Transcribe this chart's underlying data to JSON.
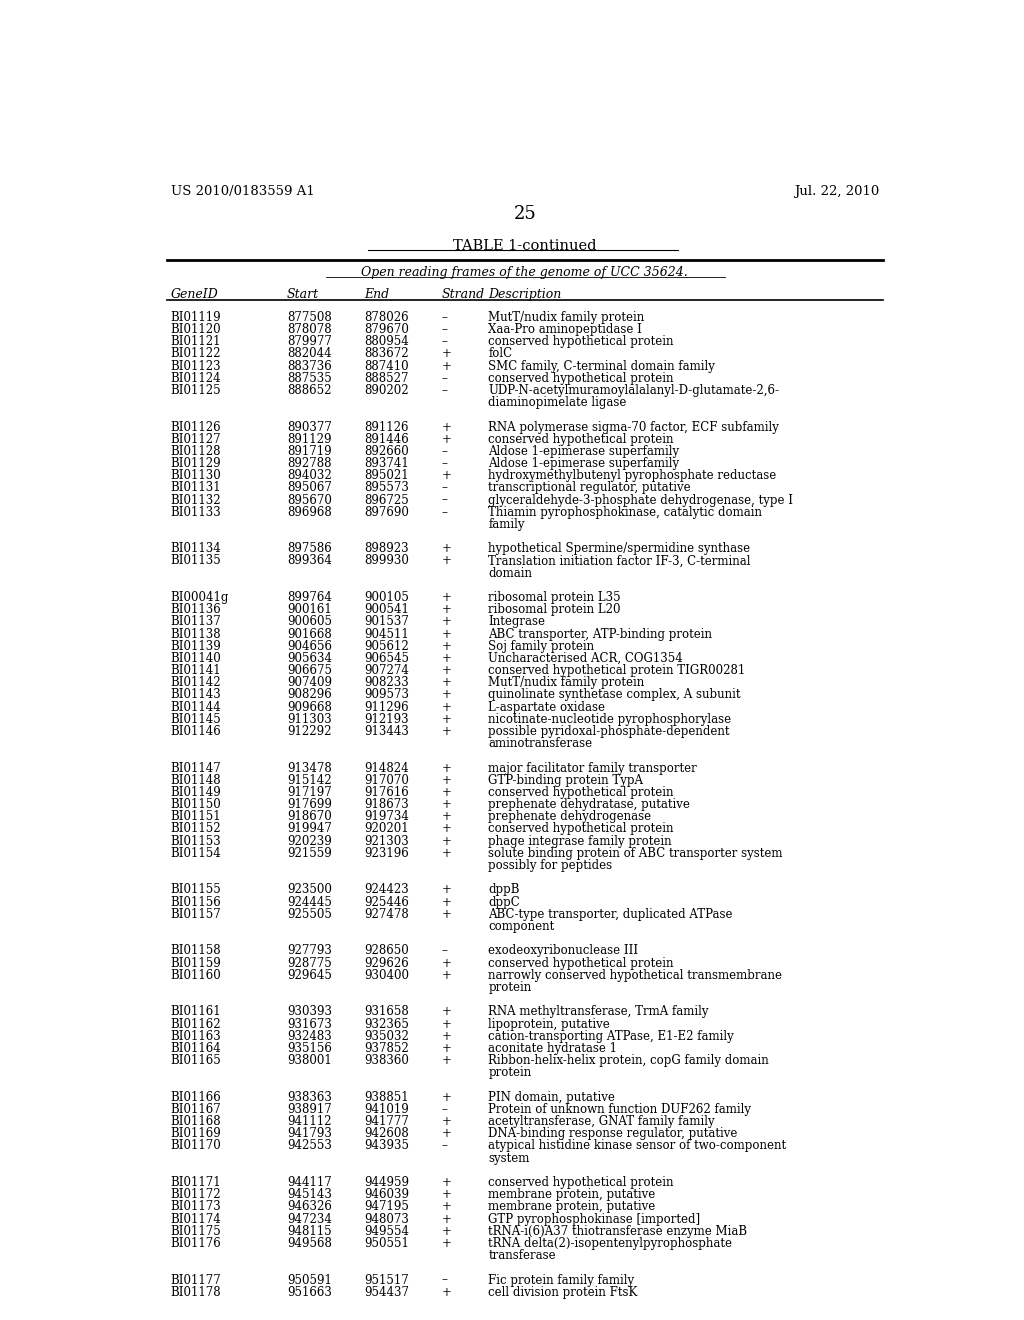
{
  "header_left": "US 2010/0183559 A1",
  "header_right": "Jul. 22, 2010",
  "page_number": "25",
  "table_title": "TABLE 1-continued",
  "table_subtitle": "Open reading frames of the genome of UCC 35624.",
  "col_headers": [
    "GeneID",
    "Start",
    "End",
    "Strand",
    "Description"
  ],
  "rows": [
    [
      "BI01119",
      "877508",
      "878026",
      "–",
      "MutT/nudix family protein"
    ],
    [
      "BI01120",
      "878078",
      "879670",
      "–",
      "Xaa-Pro aminopeptidase I"
    ],
    [
      "BI01121",
      "879977",
      "880954",
      "–",
      "conserved hypothetical protein"
    ],
    [
      "BI01122",
      "882044",
      "883672",
      "+",
      "folC"
    ],
    [
      "BI01123",
      "883736",
      "887410",
      "+",
      "SMC family, C-terminal domain family"
    ],
    [
      "BI01124",
      "887535",
      "888527",
      "–",
      "conserved hypothetical protein"
    ],
    [
      "BI01125",
      "888652",
      "890202",
      "–",
      "UDP-N-acetylmuramoylalalanyl-D-glutamate-2,6-\ndiaminopimelate ligase"
    ],
    [
      "BI01126",
      "890377",
      "891126",
      "+",
      "RNA polymerase sigma-70 factor, ECF subfamily"
    ],
    [
      "BI01127",
      "891129",
      "891446",
      "+",
      "conserved hypothetical protein"
    ],
    [
      "BI01128",
      "891719",
      "892660",
      "–",
      "Aldose 1-epimerase superfamily"
    ],
    [
      "BI01129",
      "892788",
      "893741",
      "–",
      "Aldose 1-epimerase superfamily"
    ],
    [
      "BI01130",
      "894032",
      "895021",
      "+",
      "hydroxymethylbutenyl pyrophosphate reductase"
    ],
    [
      "BI01131",
      "895067",
      "895573",
      "–",
      "transcriptional regulator, putative"
    ],
    [
      "BI01132",
      "895670",
      "896725",
      "–",
      "glyceraldehyde-3-phosphate dehydrogenase, type I"
    ],
    [
      "BI01133",
      "896968",
      "897690",
      "–",
      "Thiamin pyrophosphokinase, catalytic domain\nfamily"
    ],
    [
      "BI01134",
      "897586",
      "898923",
      "+",
      "hypothetical Spermine/spermidine synthase"
    ],
    [
      "BI01135",
      "899364",
      "899930",
      "+",
      "Translation initiation factor IF-3, C-terminal\ndomain"
    ],
    [
      "BI00041g",
      "899764",
      "900105",
      "+",
      "ribosomal protein L35"
    ],
    [
      "BI01136",
      "900161",
      "900541",
      "+",
      "ribosomal protein L20"
    ],
    [
      "BI01137",
      "900605",
      "901537",
      "+",
      "Integrase"
    ],
    [
      "BI01138",
      "901668",
      "904511",
      "+",
      "ABC transporter, ATP-binding protein"
    ],
    [
      "BI01139",
      "904656",
      "905612",
      "+",
      "Soj family protein"
    ],
    [
      "BI01140",
      "905634",
      "906545",
      "+",
      "Uncharacterised ACR, COG1354"
    ],
    [
      "BI01141",
      "906675",
      "907274",
      "+",
      "conserved hypothetical protein TIGR00281"
    ],
    [
      "BI01142",
      "907409",
      "908233",
      "+",
      "MutT/nudix family protein"
    ],
    [
      "BI01143",
      "908296",
      "909573",
      "+",
      "quinolinate synthetase complex, A subunit"
    ],
    [
      "BI01144",
      "909668",
      "911296",
      "+",
      "L-aspartate oxidase"
    ],
    [
      "BI01145",
      "911303",
      "912193",
      "+",
      "nicotinate-nucleotide pyrophosphorylase"
    ],
    [
      "BI01146",
      "912292",
      "913443",
      "+",
      "possible pyridoxal-phosphate-dependent\naminotransferase"
    ],
    [
      "BI01147",
      "913478",
      "914824",
      "+",
      "major facilitator family transporter"
    ],
    [
      "BI01148",
      "915142",
      "917070",
      "+",
      "GTP-binding protein TypA"
    ],
    [
      "BI01149",
      "917197",
      "917616",
      "+",
      "conserved hypothetical protein"
    ],
    [
      "BI01150",
      "917699",
      "918673",
      "+",
      "prephenate dehydratase, putative"
    ],
    [
      "BI01151",
      "918670",
      "919734",
      "+",
      "prephenate dehydrogenase"
    ],
    [
      "BI01152",
      "919947",
      "920201",
      "+",
      "conserved hypothetical protein"
    ],
    [
      "BI01153",
      "920239",
      "921303",
      "+",
      "phage integrase family protein"
    ],
    [
      "BI01154",
      "921559",
      "923196",
      "+",
      "solute binding protein of ABC transporter system\npossibly for peptides"
    ],
    [
      "BI01155",
      "923500",
      "924423",
      "+",
      "dppB"
    ],
    [
      "BI01156",
      "924445",
      "925446",
      "+",
      "dppC"
    ],
    [
      "BI01157",
      "925505",
      "927478",
      "+",
      "ABC-type transporter, duplicated ATPase\ncomponent"
    ],
    [
      "BI01158",
      "927793",
      "928650",
      "–",
      "exodeoxyribonuclease III"
    ],
    [
      "BI01159",
      "928775",
      "929626",
      "+",
      "conserved hypothetical protein"
    ],
    [
      "BI01160",
      "929645",
      "930400",
      "+",
      "narrowly conserved hypothetical transmembrane\nprotein"
    ],
    [
      "BI01161",
      "930393",
      "931658",
      "+",
      "RNA methyltransferase, TrmA family"
    ],
    [
      "BI01162",
      "931673",
      "932365",
      "+",
      "lipoprotein, putative"
    ],
    [
      "BI01163",
      "932483",
      "935032",
      "+",
      "cation-transporting ATPase, E1-E2 family"
    ],
    [
      "BI01164",
      "935156",
      "937852",
      "+",
      "aconitate hydratase 1"
    ],
    [
      "BI01165",
      "938001",
      "938360",
      "+",
      "Ribbon-helix-helix protein, copG family domain\nprotein"
    ],
    [
      "BI01166",
      "938363",
      "938851",
      "+",
      "PIN domain, putative"
    ],
    [
      "BI01167",
      "938917",
      "941019",
      "–",
      "Protein of unknown function DUF262 family"
    ],
    [
      "BI01168",
      "941112",
      "941777",
      "+",
      "acetyltransferase, GNAT family family"
    ],
    [
      "BI01169",
      "941793",
      "942608",
      "+",
      "DNA-binding response regulator, putative"
    ],
    [
      "BI01170",
      "942553",
      "943935",
      "–",
      "atypical histidine kinase sensor of two-component\nsystem"
    ],
    [
      "BI01171",
      "944117",
      "944959",
      "+",
      "conserved hypothetical protein"
    ],
    [
      "BI01172",
      "945143",
      "946039",
      "+",
      "membrane protein, putative"
    ],
    [
      "BI01173",
      "946326",
      "947195",
      "+",
      "membrane protein, putative"
    ],
    [
      "BI01174",
      "947234",
      "948073",
      "+",
      "GTP pyrophosphokinase [imported]"
    ],
    [
      "BI01175",
      "948115",
      "949554",
      "+",
      "tRNA-i(6)A37 thiotransferase enzyme MiaB"
    ],
    [
      "BI01176",
      "949568",
      "950551",
      "+",
      "tRNA delta(2)-isopentenylpyrophosphate\ntransferase"
    ],
    [
      "BI01177",
      "950591",
      "951517",
      "–",
      "Fic protein family family"
    ],
    [
      "BI01178",
      "951663",
      "954437",
      "+",
      "cell division protein FtsK"
    ]
  ],
  "gap_after": [
    "BI01125",
    "BI01133",
    "BI01135",
    "BI01146",
    "BI01154",
    "BI01157",
    "BI01160",
    "BI01165",
    "BI01170",
    "BI01176"
  ]
}
